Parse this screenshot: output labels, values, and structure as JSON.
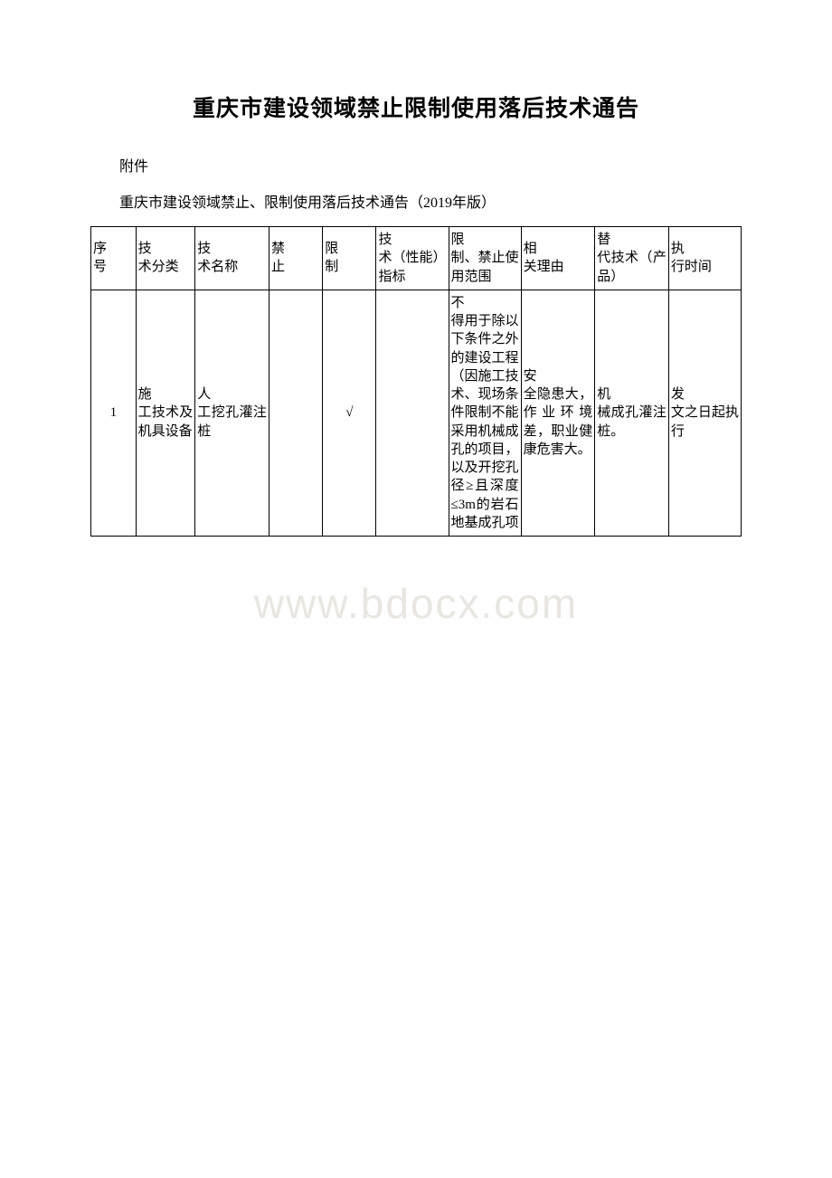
{
  "page": {
    "title": "重庆市建设领域禁止限制使用落后技术通告",
    "attachment": "附件",
    "subtitle": "重庆市建设领域禁止、限制使用落后技术通告（2019年版）",
    "watermark": "www.bdocx.com"
  },
  "headers": {
    "seq_first": "序",
    "seq_rest": "号",
    "cat_first": "技",
    "cat_rest": "术分类",
    "name_first": "技",
    "name_rest": "术名称",
    "ban_first": "禁",
    "ban_rest": "止",
    "limit_first": "限",
    "limit_rest": "制",
    "spec_first": "技",
    "spec_rest": "术（性能）指标",
    "scope_first": "限",
    "scope_rest": "制、禁止使用范围",
    "reason_first": "相",
    "reason_rest": "关理由",
    "sub_first": "替",
    "sub_rest": "代技术（产品）",
    "time_first": "执",
    "time_rest": "行时间"
  },
  "row1": {
    "seq": "1",
    "cat_first": "施",
    "cat_rest": "工技术及机具设备",
    "name_first": "人",
    "name_rest": "工挖孔灌注桩",
    "ban": "",
    "limit": "√",
    "spec": "",
    "scope_first": "不",
    "scope_rest": "得用于除以下条件之外的建设工程（因施工技术、现场条件限制不能采用机械成孔的项目，以及开挖孔径≥且深度≤3m的岩石地基成孔项",
    "reason_first": "安",
    "reason_rest": "全隐患大，作业环境差，职业健康危害大。",
    "sub_first": "机",
    "sub_rest": "械成孔灌注桩。",
    "time_first": "发",
    "time_rest": "文之日起执行"
  }
}
